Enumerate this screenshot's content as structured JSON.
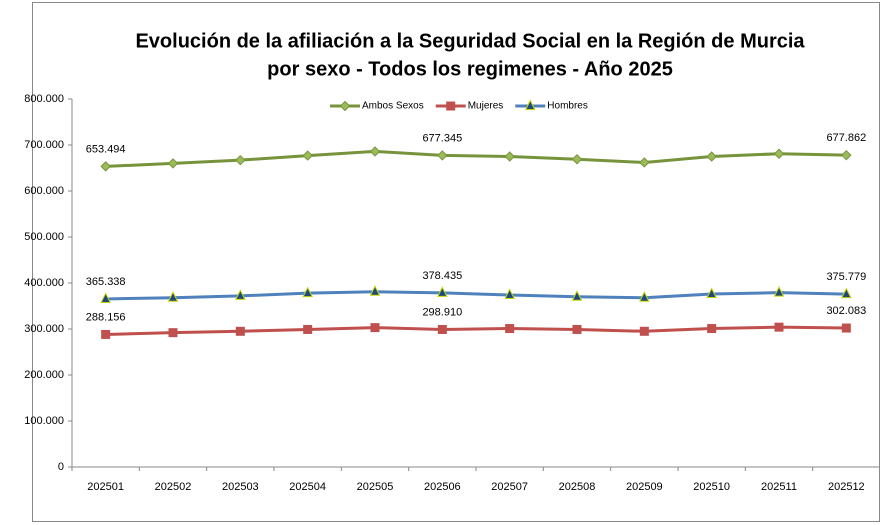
{
  "chart_data": {
    "type": "line",
    "title": [
      "Evolución de la afiliación a la Seguridad Social en la Región de Murcia",
      "por sexo - Todos los regimenes - Año 2025"
    ],
    "categories": [
      "202501",
      "202502",
      "202503",
      "202504",
      "202505",
      "202506",
      "202507",
      "202508",
      "202509",
      "202510",
      "202511",
      "202512"
    ],
    "series": [
      {
        "name": "Ambos Sexos",
        "color": "#77933c",
        "marker": "diamond",
        "values": [
          653494,
          660000,
          667000,
          677000,
          686000,
          677345,
          675000,
          669000,
          662000,
          675000,
          681000,
          677862
        ],
        "value_labels": [
          "653.494",
          null,
          null,
          null,
          null,
          "677.345",
          null,
          null,
          null,
          null,
          null,
          "677.862"
        ]
      },
      {
        "name": "Mujeres",
        "color": "#c0504d",
        "marker": "square",
        "values": [
          288156,
          292000,
          295000,
          299000,
          303000,
          298910,
          301000,
          299000,
          295000,
          301000,
          304000,
          302083
        ],
        "value_labels": [
          "288.156",
          null,
          null,
          null,
          null,
          "298.910",
          null,
          null,
          null,
          null,
          null,
          "302.083"
        ]
      },
      {
        "name": "Hombres",
        "color": "#4f81bd",
        "marker": "triangle",
        "values": [
          365338,
          368000,
          372000,
          378000,
          381000,
          378435,
          374000,
          370000,
          368000,
          376000,
          379000,
          375779
        ],
        "value_labels": [
          "365.338",
          null,
          null,
          null,
          null,
          "378.435",
          null,
          null,
          null,
          null,
          null,
          "375.779"
        ]
      }
    ],
    "ylim": [
      0,
      800000
    ],
    "yticks": [
      0,
      {
        "value": 100000,
        "label": "100.000"
      },
      {
        "value": 200000,
        "label": "200.000"
      },
      {
        "value": 300000,
        "label": "300.000"
      },
      {
        "value": 400000,
        "label": "400.000"
      },
      {
        "value": 500000,
        "label": "500.000"
      },
      {
        "value": 600000,
        "label": "600.000"
      },
      {
        "value": 700000,
        "label": "700.000"
      },
      {
        "value": 800000,
        "label": "800.000"
      }
    ],
    "grid": false,
    "legend": "top"
  }
}
